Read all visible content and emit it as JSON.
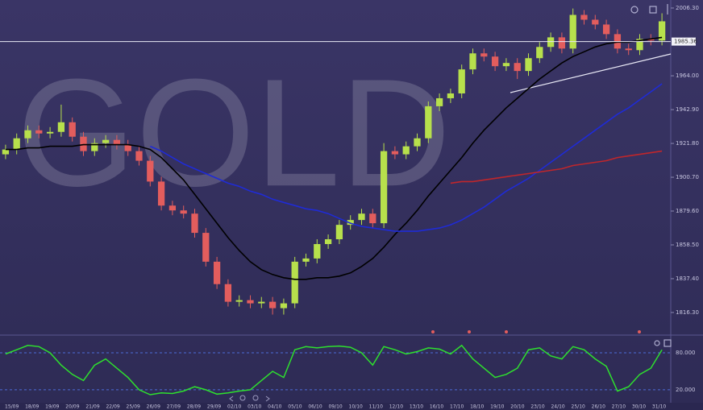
{
  "chart_data": [
    {
      "type": "candlestick",
      "title": "GOLD",
      "open": [
        1915,
        1918,
        1925,
        1930,
        1928,
        1929,
        1935,
        1926,
        1917,
        1922,
        1924,
        1921,
        1917,
        1911,
        1898,
        1883,
        1880,
        1878,
        1866,
        1848,
        1834,
        1823,
        1824,
        1822,
        1823,
        1819,
        1822,
        1848,
        1850,
        1859,
        1862,
        1871,
        1874,
        1878,
        1872,
        1917,
        1915,
        1920,
        1925,
        1945,
        1950,
        1953,
        1968,
        1978,
        1976,
        1970,
        1972,
        1967,
        1975,
        1982,
        1988,
        1981,
        2002,
        1999,
        1996,
        1990,
        1981,
        1980,
        1987,
        1986
      ],
      "high": [
        1921,
        1928,
        1933,
        1933,
        1932,
        1946,
        1938,
        1929,
        1925,
        1927,
        1927,
        1924,
        1920,
        1914,
        1901,
        1886,
        1883,
        1881,
        1869,
        1851,
        1837,
        1827,
        1827,
        1826,
        1826,
        1825,
        1851,
        1853,
        1862,
        1865,
        1874,
        1877,
        1881,
        1881,
        1922,
        1920,
        1923,
        1928,
        1948,
        1953,
        1956,
        1971,
        1981,
        1981,
        1979,
        1975,
        1975,
        1978,
        1985,
        1991,
        1991,
        2006,
        2005,
        2002,
        1999,
        1993,
        1984,
        1990,
        1990,
        2003
      ],
      "low": [
        1912,
        1915,
        1922,
        1925,
        1925,
        1926,
        1923,
        1914,
        1914,
        1919,
        1918,
        1914,
        1908,
        1895,
        1880,
        1877,
        1875,
        1863,
        1845,
        1831,
        1820,
        1820,
        1819,
        1819,
        1815,
        1815,
        1819,
        1845,
        1847,
        1856,
        1859,
        1868,
        1871,
        1869,
        1869,
        1912,
        1912,
        1917,
        1922,
        1942,
        1947,
        1950,
        1965,
        1973,
        1967,
        1967,
        1962,
        1964,
        1972,
        1979,
        1978,
        1978,
        1996,
        1993,
        1987,
        1978,
        1977,
        1977,
        1983,
        1983
      ],
      "close": [
        1918,
        1925,
        1930,
        1928,
        1929,
        1935,
        1926,
        1917,
        1922,
        1924,
        1921,
        1917,
        1911,
        1898,
        1883,
        1880,
        1878,
        1866,
        1848,
        1834,
        1823,
        1824,
        1822,
        1823,
        1819,
        1822,
        1848,
        1850,
        1859,
        1862,
        1871,
        1874,
        1878,
        1872,
        1917,
        1915,
        1920,
        1925,
        1945,
        1950,
        1953,
        1968,
        1978,
        1976,
        1970,
        1972,
        1967,
        1975,
        1982,
        1988,
        1981,
        2002,
        1999,
        1996,
        1990,
        1981,
        1980,
        1987,
        1986,
        1998
      ],
      "up_color": "#b7e04c",
      "down_color": "#e35d5d",
      "moving_averages": [
        {
          "color": "#000000",
          "values": [
            1918,
            1918,
            1919,
            1919,
            1920,
            1920,
            1920,
            1921,
            1921,
            1921,
            1921,
            1921,
            1920,
            1918,
            1913,
            1906,
            1899,
            1890,
            1881,
            1872,
            1863,
            1855,
            1848,
            1843,
            1840,
            1838,
            1837,
            1837,
            1838,
            1838,
            1839,
            1841,
            1845,
            1850,
            1857,
            1865,
            1872,
            1880,
            1889,
            1897,
            1905,
            1913,
            1922,
            1930,
            1937,
            1944,
            1950,
            1956,
            1962,
            1967,
            1972,
            1976,
            1979,
            1982,
            1984,
            1985,
            1985,
            1986,
            1987,
            1988
          ]
        },
        {
          "color": "#1f2bd6",
          "values": [
            null,
            null,
            null,
            null,
            null,
            null,
            null,
            null,
            null,
            null,
            null,
            null,
            null,
            1920,
            1917,
            1913,
            1909,
            1906,
            1903,
            1900,
            1897,
            1895,
            1892,
            1890,
            1887,
            1885,
            1883,
            1881,
            1880,
            1878,
            1875,
            1872,
            1870,
            1869,
            1868,
            1867,
            1867,
            1867,
            1868,
            1869,
            1871,
            1874,
            1878,
            1882,
            1887,
            1892,
            1896,
            1900,
            1905,
            1910,
            1915,
            1920,
            1925,
            1930,
            1935,
            1940,
            1944,
            1949,
            1954,
            1959
          ]
        },
        {
          "color": "#c0262b",
          "values": [
            null,
            null,
            null,
            null,
            null,
            null,
            null,
            null,
            null,
            null,
            null,
            null,
            null,
            null,
            null,
            null,
            null,
            null,
            null,
            null,
            null,
            null,
            null,
            null,
            null,
            null,
            null,
            null,
            null,
            null,
            null,
            null,
            null,
            null,
            null,
            null,
            null,
            null,
            null,
            null,
            1897,
            1898,
            1898,
            1899,
            1900,
            1901,
            1902,
            1903,
            1904,
            1905,
            1906,
            1908,
            1909,
            1910,
            1911,
            1913,
            1914,
            1915,
            1916,
            1917
          ]
        }
      ],
      "last_price": 1985.36,
      "ylim": [
        1802.7,
        2011.3
      ],
      "yticks": [
        {
          "value": 2006.3,
          "label": "2006.30"
        },
        {
          "value": 1964.0,
          "label": "1964.00"
        },
        {
          "value": 1942.9,
          "label": "1942.90"
        },
        {
          "value": 1921.8,
          "label": "1921.80"
        },
        {
          "value": 1900.7,
          "label": "1900.70"
        },
        {
          "value": 1879.6,
          "label": "1879.60"
        },
        {
          "value": 1858.5,
          "label": "1858.50"
        },
        {
          "value": 1837.4,
          "label": "1837.40"
        },
        {
          "value": 1816.3,
          "label": "1816.30"
        }
      ],
      "x_labels": [
        "15/09",
        "18/09",
        "19/09",
        "20/09",
        "21/09",
        "22/09",
        "25/09",
        "26/09",
        "27/09",
        "28/09",
        "29/09",
        "02/10",
        "03/10",
        "04/10",
        "05/10",
        "06/10",
        "09/10",
        "10/10",
        "11/10",
        "12/10",
        "13/10",
        "16/10",
        "17/10",
        "18/10",
        "19/10",
        "20/10",
        "23/10",
        "24/10",
        "25/10",
        "26/10",
        "27/10",
        "30/10",
        "31/10"
      ]
    },
    {
      "type": "line",
      "color": "#2ee02e",
      "values": [
        78,
        85,
        92,
        90,
        80,
        60,
        45,
        35,
        60,
        70,
        55,
        40,
        20,
        12,
        15,
        14,
        18,
        25,
        20,
        13,
        15,
        18,
        20,
        35,
        50,
        40,
        85,
        90,
        88,
        90,
        91,
        89,
        80,
        60,
        90,
        85,
        78,
        82,
        88,
        86,
        78,
        92,
        70,
        55,
        40,
        45,
        55,
        85,
        88,
        75,
        70,
        90,
        85,
        70,
        58,
        18,
        25,
        45,
        55,
        85
      ],
      "ylim": [
        -1,
        103.5
      ],
      "yticks": [
        {
          "value": 80,
          "label": "80.000"
        },
        {
          "value": 20,
          "label": "20.000"
        }
      ]
    }
  ]
}
